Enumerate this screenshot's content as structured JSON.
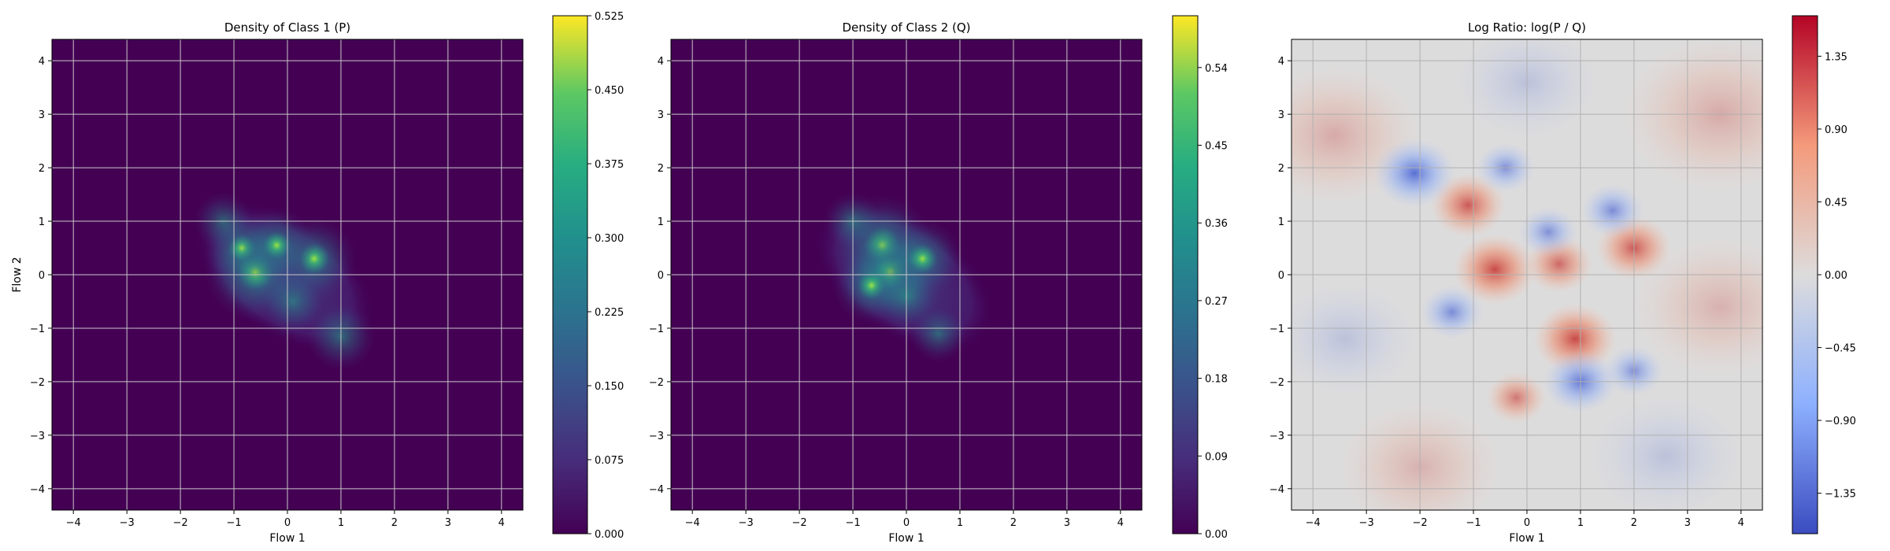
{
  "chart_data": [
    {
      "type": "heatmap",
      "title": "Density of Class 1 (P)",
      "xlabel": "Flow 1",
      "ylabel": "Flow 2",
      "xlim": [
        -4.4,
        4.4
      ],
      "ylim": [
        -4.4,
        4.4
      ],
      "xticks": [
        -4,
        -3,
        -2,
        -1,
        0,
        1,
        2,
        3,
        4
      ],
      "yticks": [
        -4,
        -3,
        -2,
        -1,
        0,
        1,
        2,
        3,
        4
      ],
      "grid": true,
      "colormap": "viridis",
      "colorbar": {
        "min": 0.0,
        "max": 0.525,
        "ticks": [
          "0.000",
          "0.075",
          "0.150",
          "0.225",
          "0.300",
          "0.375",
          "0.450",
          "0.525"
        ]
      },
      "blobs": [
        {
          "x": -0.6,
          "y": 0.05,
          "peak": 0.47
        },
        {
          "x": -0.85,
          "y": 0.5,
          "peak": 0.3
        },
        {
          "x": 0.5,
          "y": 0.3,
          "peak": 0.36
        },
        {
          "x": -0.2,
          "y": 0.55,
          "peak": 0.3
        },
        {
          "x": 1.0,
          "y": -1.15,
          "peak": 0.25
        },
        {
          "x": 0.1,
          "y": -0.5,
          "peak": 0.22
        },
        {
          "x": -1.2,
          "y": 1.0,
          "peak": 0.18
        }
      ]
    },
    {
      "type": "heatmap",
      "title": "Density of Class 2 (Q)",
      "xlabel": "Flow 1",
      "ylabel": "",
      "xlim": [
        -4.4,
        4.4
      ],
      "ylim": [
        -4.4,
        4.4
      ],
      "xticks": [
        -4,
        -3,
        -2,
        -1,
        0,
        1,
        2,
        3,
        4
      ],
      "yticks": [
        -4,
        -3,
        -2,
        -1,
        0,
        1,
        2,
        3,
        4
      ],
      "grid": true,
      "colormap": "viridis",
      "colorbar": {
        "min": 0.0,
        "max": 0.6,
        "ticks": [
          "0.00",
          "0.09",
          "0.18",
          "0.27",
          "0.36",
          "0.45",
          "0.54"
        ]
      },
      "blobs": [
        {
          "x": -0.45,
          "y": 0.55,
          "peak": 0.55
        },
        {
          "x": -0.3,
          "y": 0.05,
          "peak": 0.5
        },
        {
          "x": 0.3,
          "y": 0.3,
          "peak": 0.38
        },
        {
          "x": -0.65,
          "y": -0.2,
          "peak": 0.36
        },
        {
          "x": 0.0,
          "y": -0.4,
          "peak": 0.3
        },
        {
          "x": -1.0,
          "y": 1.0,
          "peak": 0.2
        },
        {
          "x": 0.6,
          "y": -1.1,
          "peak": 0.2
        }
      ]
    },
    {
      "type": "heatmap",
      "title": "Log Ratio: log(P / Q)",
      "xlabel": "Flow 1",
      "ylabel": "",
      "xlim": [
        -4.4,
        4.4
      ],
      "ylim": [
        -4.4,
        4.4
      ],
      "xticks": [
        -4,
        -3,
        -2,
        -1,
        0,
        1,
        2,
        3,
        4
      ],
      "yticks": [
        -4,
        -3,
        -2,
        -1,
        0,
        1,
        2,
        3,
        4
      ],
      "grid": true,
      "colormap": "coolwarm",
      "colorbar": {
        "min": -1.6,
        "max": 1.6,
        "ticks": [
          "1.35",
          "0.90",
          "0.45",
          "0.00",
          "-0.45",
          "-0.90",
          "-1.35"
        ]
      },
      "blobs": [
        {
          "x": -1.1,
          "y": 1.3,
          "peak": 1.0
        },
        {
          "x": -0.6,
          "y": 0.1,
          "peak": 1.2
        },
        {
          "x": 0.9,
          "y": -1.2,
          "peak": 1.2
        },
        {
          "x": 2.0,
          "y": 0.5,
          "peak": 1.0
        },
        {
          "x": -0.2,
          "y": -2.3,
          "peak": 0.6
        },
        {
          "x": 0.6,
          "y": 0.2,
          "peak": 0.8
        },
        {
          "x": -2.1,
          "y": 1.9,
          "peak": -1.2
        },
        {
          "x": 1.0,
          "y": -2.0,
          "peak": -1.0
        },
        {
          "x": -0.4,
          "y": 2.0,
          "peak": -0.6
        },
        {
          "x": 1.6,
          "y": 1.2,
          "peak": -0.7
        },
        {
          "x": -1.4,
          "y": -0.7,
          "peak": -0.7
        },
        {
          "x": 2.0,
          "y": -1.8,
          "peak": -0.6
        },
        {
          "x": 0.4,
          "y": 0.8,
          "peak": -0.6
        }
      ]
    }
  ]
}
